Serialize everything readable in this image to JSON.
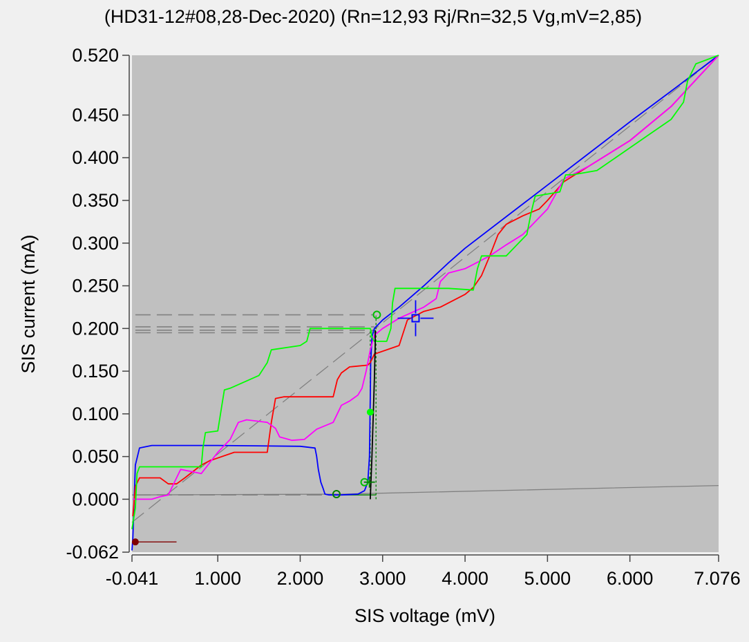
{
  "chart_data": {
    "type": "line",
    "title": "(HD31-12#08,28-Dec-2020) (Rn=12,93 Rj/Rn=32,5 Vg,mV=2,85)",
    "xlabel": "SIS voltage (mV)",
    "ylabel": "SIS current (mA)",
    "xlim": [
      -0.041,
      7.076
    ],
    "ylim": [
      -0.062,
      0.52
    ],
    "x_ticks": [
      {
        "value": -0.041,
        "label": "-0.041"
      },
      {
        "value": 1.0,
        "label": "1.000"
      },
      {
        "value": 2.0,
        "label": "2.000"
      },
      {
        "value": 3.0,
        "label": "3.000"
      },
      {
        "value": 4.0,
        "label": "4.000"
      },
      {
        "value": 5.0,
        "label": "5.000"
      },
      {
        "value": 6.0,
        "label": "6.000"
      },
      {
        "value": 7.076,
        "label": "7.076"
      }
    ],
    "y_ticks": [
      {
        "value": -0.062,
        "label": "-0.062"
      },
      {
        "value": 0.0,
        "label": "0.000"
      },
      {
        "value": 0.05,
        "label": "0.050"
      },
      {
        "value": 0.1,
        "label": "0.100"
      },
      {
        "value": 0.15,
        "label": "0.150"
      },
      {
        "value": 0.2,
        "label": "0.200"
      },
      {
        "value": 0.25,
        "label": "0.250"
      },
      {
        "value": 0.3,
        "label": "0.300"
      },
      {
        "value": 0.35,
        "label": "0.350"
      },
      {
        "value": 0.4,
        "label": "0.400"
      },
      {
        "value": 0.45,
        "label": "0.450"
      },
      {
        "value": 0.52,
        "label": "0.520"
      }
    ],
    "grid": false,
    "legend": "none",
    "colors": {
      "plot_bg": "#c0c0c0",
      "page_bg": "#f0f0f0",
      "blue": "#0000ff",
      "red": "#ff0000",
      "green": "#00ff00",
      "magenta": "#ff00ff",
      "black": "#000000",
      "gray": "#808080",
      "dark_red": "#800000"
    },
    "series": [
      {
        "color": "#0000ff",
        "x": [
          -0.041,
          -0.03,
          0.0,
          0.05,
          0.2,
          1.0,
          2.0,
          2.18,
          2.2,
          2.22,
          2.25,
          2.28,
          2.3,
          2.35,
          2.5,
          2.7,
          2.78,
          2.82,
          2.84,
          2.85,
          2.855,
          2.87,
          2.9,
          3.0,
          3.2,
          3.5,
          3.8,
          4.0,
          4.5,
          5.0,
          5.5,
          6.0,
          6.5,
          7.076
        ],
        "y": [
          -0.06,
          -0.045,
          0.04,
          0.06,
          0.063,
          0.063,
          0.062,
          0.06,
          0.05,
          0.035,
          0.02,
          0.012,
          0.006,
          0.005,
          0.005,
          0.006,
          0.01,
          0.02,
          0.05,
          0.12,
          0.16,
          0.19,
          0.2,
          0.21,
          0.225,
          0.25,
          0.277,
          0.294,
          0.331,
          0.368,
          0.405,
          0.442,
          0.478,
          0.52
        ]
      },
      {
        "color": "#ff0000",
        "x": [
          -0.03,
          0.0,
          0.05,
          0.3,
          0.4,
          0.5,
          0.6,
          0.8,
          0.9,
          1.2,
          1.5,
          1.6,
          1.65,
          1.7,
          1.8,
          2.0,
          2.4,
          2.45,
          2.5,
          2.6,
          2.82,
          2.85,
          2.9,
          3.2,
          3.3,
          3.5,
          3.7,
          4.0,
          4.1,
          4.2,
          4.3,
          4.4,
          4.5,
          4.7,
          4.9,
          5.0,
          5.2,
          5.5,
          6.0,
          6.5,
          7.076
        ],
        "y": [
          -0.02,
          0.015,
          0.025,
          0.025,
          0.018,
          0.018,
          0.025,
          0.04,
          0.045,
          0.055,
          0.055,
          0.055,
          0.09,
          0.118,
          0.12,
          0.12,
          0.12,
          0.14,
          0.148,
          0.155,
          0.157,
          0.16,
          0.17,
          0.18,
          0.21,
          0.22,
          0.225,
          0.24,
          0.248,
          0.262,
          0.285,
          0.31,
          0.322,
          0.332,
          0.34,
          0.35,
          0.372,
          0.39,
          0.42,
          0.46,
          0.52
        ]
      },
      {
        "color": "#ff00ff",
        "x": [
          -0.03,
          0.2,
          0.3,
          0.4,
          0.5,
          0.55,
          0.8,
          1.0,
          1.15,
          1.25,
          1.35,
          1.6,
          1.7,
          1.75,
          1.9,
          2.05,
          2.2,
          2.4,
          2.5,
          2.6,
          2.7,
          2.75,
          2.8,
          2.85,
          2.9,
          3.0,
          3.2,
          3.5,
          3.65,
          3.7,
          3.8,
          4.0,
          4.3,
          4.5,
          4.7,
          5.0,
          5.2,
          5.5,
          6.0,
          6.5,
          7.076
        ],
        "y": [
          0.0,
          0.0,
          0.003,
          0.005,
          0.025,
          0.035,
          0.03,
          0.055,
          0.07,
          0.09,
          0.093,
          0.09,
          0.083,
          0.073,
          0.069,
          0.07,
          0.082,
          0.09,
          0.11,
          0.115,
          0.122,
          0.13,
          0.15,
          0.175,
          0.192,
          0.2,
          0.212,
          0.225,
          0.235,
          0.255,
          0.265,
          0.27,
          0.285,
          0.298,
          0.31,
          0.34,
          0.375,
          0.39,
          0.42,
          0.46,
          0.52
        ]
      },
      {
        "color": "#00ff00",
        "x": [
          -0.041,
          0.0,
          0.02,
          0.05,
          0.8,
          0.82,
          0.85,
          1.0,
          1.05,
          1.08,
          1.15,
          1.5,
          1.6,
          1.65,
          2.0,
          2.08,
          2.12,
          2.5,
          2.85,
          2.87,
          2.9,
          3.05,
          3.1,
          3.12,
          3.15,
          3.3,
          3.8,
          4.1,
          4.15,
          4.2,
          4.3,
          4.5,
          4.75,
          4.8,
          4.85,
          5.15,
          5.22,
          5.3,
          5.6,
          5.9,
          6.2,
          6.5,
          6.65,
          6.7,
          6.8,
          7.076
        ],
        "y": [
          -0.035,
          -0.01,
          0.03,
          0.038,
          0.038,
          0.06,
          0.078,
          0.08,
          0.11,
          0.128,
          0.13,
          0.145,
          0.16,
          0.175,
          0.18,
          0.185,
          0.2,
          0.2,
          0.2,
          0.19,
          0.185,
          0.185,
          0.2,
          0.23,
          0.247,
          0.247,
          0.247,
          0.245,
          0.27,
          0.285,
          0.285,
          0.285,
          0.31,
          0.335,
          0.355,
          0.36,
          0.38,
          0.38,
          0.385,
          0.405,
          0.425,
          0.445,
          0.465,
          0.49,
          0.51,
          0.52
        ]
      },
      {
        "color": "#000000",
        "x": [
          2.85,
          2.87,
          2.9,
          2.91,
          2.91
        ],
        "y": [
          0.0,
          0.05,
          0.14,
          0.18,
          0.198
        ]
      }
    ],
    "reference_lines": [
      {
        "color": "#808080",
        "style": "dashed",
        "x": [
          -0.041,
          7.076
        ],
        "y": [
          -0.027,
          0.52
        ]
      },
      {
        "color": "#808080",
        "style": "solid",
        "x": [
          -0.041,
          2.5,
          7.076
        ],
        "y": [
          0.005,
          0.006,
          0.016
        ]
      },
      {
        "color": "#808080",
        "style": "dashed",
        "x": [
          0.0,
          2.9
        ],
        "y": [
          0.216,
          0.216
        ]
      },
      {
        "color": "#808080",
        "style": "dashed",
        "x": [
          0.0,
          2.9
        ],
        "y": [
          0.202,
          0.202
        ]
      },
      {
        "color": "#808080",
        "style": "dashed",
        "x": [
          0.0,
          2.9
        ],
        "y": [
          0.198,
          0.198
        ]
      },
      {
        "color": "#808080",
        "style": "dashed",
        "x": [
          0.0,
          2.9
        ],
        "y": [
          0.195,
          0.195
        ]
      },
      {
        "color": "#808080",
        "style": "dashed",
        "x": [
          0.0,
          2.5
        ],
        "y": [
          0.005,
          0.005
        ]
      },
      {
        "color": "#008000",
        "style": "dotted",
        "x": [
          2.85,
          2.85
        ],
        "y": [
          0.0,
          0.2
        ]
      },
      {
        "color": "#008000",
        "style": "dotted",
        "x": [
          2.92,
          2.92
        ],
        "y": [
          0.0,
          0.215
        ]
      },
      {
        "color": "#008000",
        "style": "solid",
        "x": [
          2.5,
          2.92
        ],
        "y": [
          0.005,
          0.005
        ]
      },
      {
        "color": "#800000",
        "style": "solid",
        "x": [
          -0.041,
          0.5
        ],
        "y": [
          -0.05,
          -0.05
        ]
      }
    ],
    "markers": [
      {
        "x": 2.93,
        "y": 0.216,
        "shape": "circle-open",
        "color": "#00c000"
      },
      {
        "x": 2.44,
        "y": 0.006,
        "shape": "circle-open",
        "color": "#008000"
      },
      {
        "x": 2.78,
        "y": 0.02,
        "shape": "circle-open",
        "color": "#00c000"
      },
      {
        "x": 2.85,
        "y": 0.102,
        "shape": "dot",
        "color": "#00ff00"
      },
      {
        "x": 2.84,
        "y": 0.02,
        "shape": "plus",
        "color": "#008000"
      },
      {
        "x": 3.4,
        "y": 0.212,
        "shape": "crosshair",
        "color": "#0000ff"
      },
      {
        "x": 0.0,
        "y": -0.05,
        "shape": "dot",
        "color": "#800000"
      }
    ]
  }
}
